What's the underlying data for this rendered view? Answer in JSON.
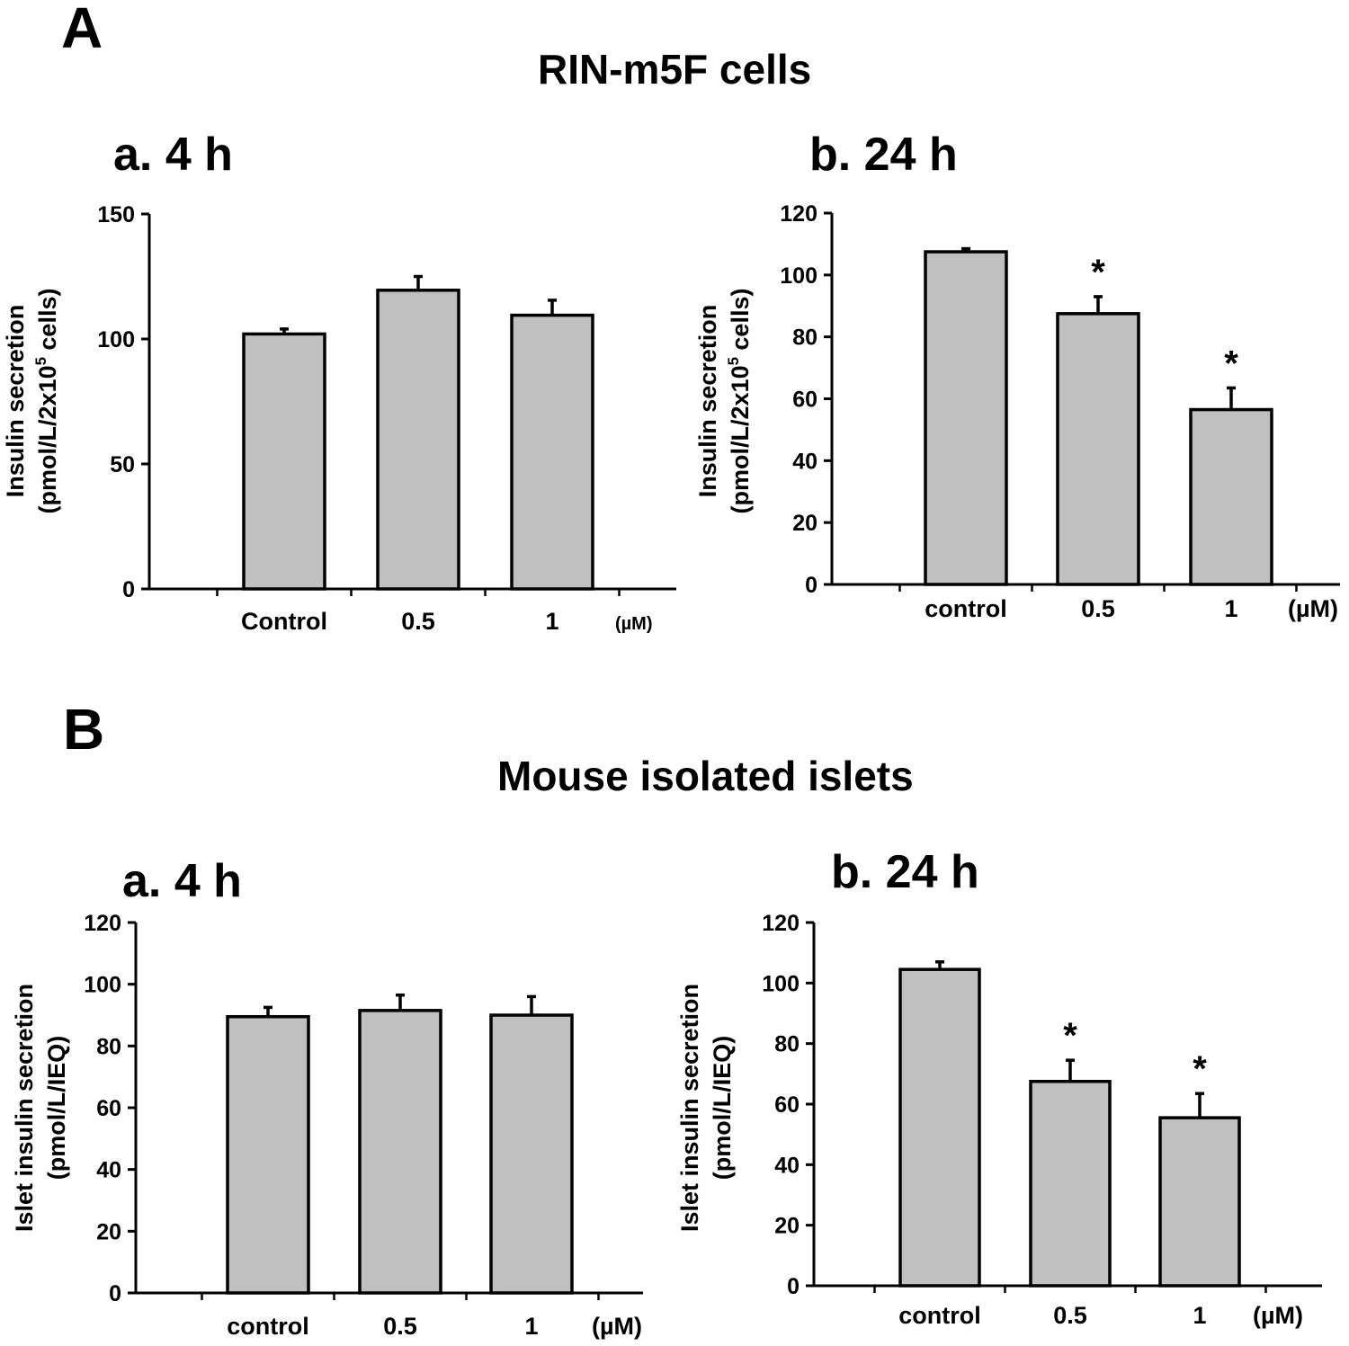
{
  "panels": {
    "A": {
      "letter": "A",
      "title": "RIN-m5F cells"
    },
    "B": {
      "letter": "B",
      "title": "Mouse isolated islets"
    }
  },
  "chart_data": [
    {
      "type": "bar",
      "title": "a. 4 h",
      "categories": [
        "Control",
        "0.5",
        "1"
      ],
      "unit_label": "(µM)",
      "ylabel_line1": "Insulin secretion",
      "ylabel_line2_main": "(pmol/L/2x10",
      "ylabel_line2_sup": "5",
      "ylabel_line2_end": " cells)",
      "series": [
        {
          "values": [
            102,
            119.5,
            109.5
          ],
          "errors": [
            2,
            5.5,
            6
          ]
        }
      ],
      "significance": [
        "",
        "",
        ""
      ],
      "ylim": [
        0,
        150
      ],
      "yticks": [
        0,
        50,
        100,
        150
      ],
      "bar_color": "#c0c0c0"
    },
    {
      "type": "bar",
      "title": "b. 24 h",
      "categories": [
        "control",
        "0.5",
        "1"
      ],
      "unit_label": "(µM)",
      "ylabel_line1": "Insulin secretion",
      "ylabel_line2_main": "(pmol/L/2x10",
      "ylabel_line2_sup": "5",
      "ylabel_line2_end": " cells)",
      "series": [
        {
          "values": [
            107.5,
            87.5,
            56.5
          ],
          "errors": [
            1,
            5.5,
            7
          ]
        }
      ],
      "significance": [
        "",
        "*",
        "*"
      ],
      "ylim": [
        0,
        120
      ],
      "yticks": [
        0,
        20,
        40,
        60,
        80,
        100,
        120
      ],
      "bar_color": "#c0c0c0"
    },
    {
      "type": "bar",
      "title": "a. 4 h",
      "categories": [
        "control",
        "0.5",
        "1"
      ],
      "unit_label": "(µM)",
      "ylabel_line1": "Islet insulin secretion",
      "ylabel_line2_main": "(pmol/L/IEQ)",
      "ylabel_line2_sup": "",
      "ylabel_line2_end": "",
      "series": [
        {
          "values": [
            89.5,
            91.5,
            90
          ],
          "errors": [
            3,
            5,
            6
          ]
        }
      ],
      "significance": [
        "",
        "",
        ""
      ],
      "ylim": [
        0,
        120
      ],
      "yticks": [
        0,
        20,
        40,
        60,
        80,
        100,
        120
      ],
      "bar_color": "#c0c0c0"
    },
    {
      "type": "bar",
      "title": "b. 24 h",
      "categories": [
        "control",
        "0.5",
        "1"
      ],
      "unit_label": "(µM)",
      "ylabel_line1": "Islet insulin secretion",
      "ylabel_line2_main": "(pmol/L/IEQ)",
      "ylabel_line2_sup": "",
      "ylabel_line2_end": "",
      "series": [
        {
          "values": [
            104.5,
            67.5,
            55.5
          ],
          "errors": [
            2.5,
            7,
            8
          ]
        }
      ],
      "significance": [
        "",
        "*",
        "*"
      ],
      "ylim": [
        0,
        120
      ],
      "yticks": [
        0,
        20,
        40,
        60,
        80,
        100,
        120
      ],
      "bar_color": "#c0c0c0"
    }
  ]
}
